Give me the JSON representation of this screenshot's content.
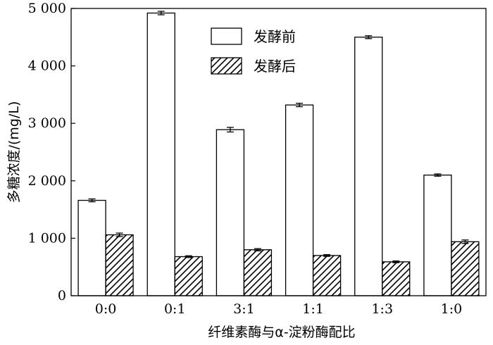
{
  "chart_data": {
    "type": "bar",
    "xlabel": "纤维素酶与α-淀粉酶配比",
    "ylabel": "多糖浓度/(mg/L)",
    "ylim": [
      0,
      5000
    ],
    "y_ticks": [
      0,
      1000,
      2000,
      3000,
      4000,
      5000
    ],
    "y_tick_labels": [
      "0",
      "1 000",
      "2 000",
      "3 000",
      "4 000",
      "5 000"
    ],
    "categories": [
      "0:0",
      "0:1",
      "3:1",
      "1:1",
      "1:3",
      "1:0"
    ],
    "series": [
      {
        "name": "发酵前",
        "fill": "white",
        "values": [
          1660,
          4920,
          2890,
          3320,
          4500,
          2100
        ],
        "errors": [
          25,
          30,
          40,
          30,
          25,
          20
        ]
      },
      {
        "name": "发酵后",
        "fill": "hatched",
        "values": [
          1060,
          680,
          800,
          700,
          590,
          940
        ],
        "errors": [
          30,
          15,
          20,
          15,
          15,
          30
        ]
      }
    ],
    "legend_position": "top-right",
    "grid": false
  }
}
